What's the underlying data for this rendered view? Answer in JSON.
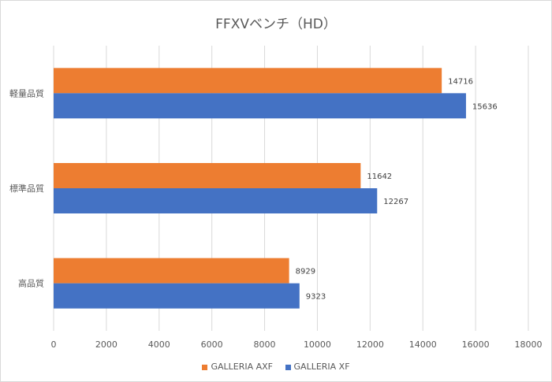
{
  "chart_data": {
    "type": "bar",
    "orientation": "horizontal",
    "title": "FFXVベンチ（HD）",
    "categories": [
      "軽量品質",
      "標準品質",
      "高品質"
    ],
    "series": [
      {
        "name": "GALLERIA AXF",
        "color": "#ED7D31",
        "values": [
          14716,
          11642,
          8929
        ]
      },
      {
        "name": "GALLERIA XF",
        "color": "#4472C4",
        "values": [
          15636,
          12267,
          9323
        ]
      }
    ],
    "xlim": [
      0,
      18000
    ],
    "xticks": [
      0,
      2000,
      4000,
      6000,
      8000,
      10000,
      12000,
      14000,
      16000,
      18000
    ],
    "grid": true,
    "data_labels": true,
    "legend": "bottom"
  }
}
